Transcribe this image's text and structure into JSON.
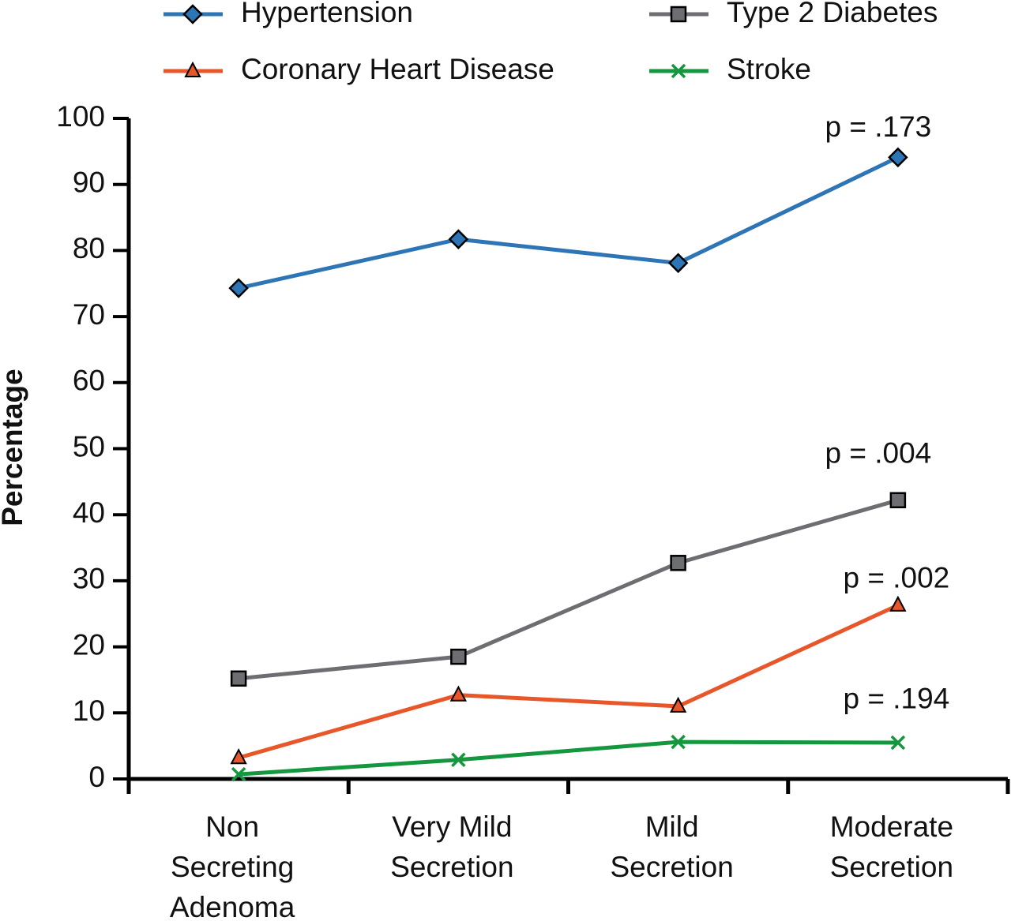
{
  "chart_data": {
    "type": "line",
    "y_label": "Percentage",
    "categories": [
      [
        "Non",
        "Secreting",
        "Adenoma"
      ],
      [
        "Very Mild",
        "Secretion"
      ],
      [
        "Mild",
        "Secretion"
      ],
      [
        "Moderate",
        "Secretion"
      ]
    ],
    "series": [
      {
        "name": "Hypertension",
        "color": "#2e75b6",
        "marker": "diamond",
        "values": [
          74.3,
          81.7,
          78.1,
          94.1
        ],
        "annotation": "p = .173"
      },
      {
        "name": "Type 2 Diabetes",
        "color": "#6d6e71",
        "marker": "square",
        "values": [
          15.2,
          18.5,
          32.7,
          42.2
        ],
        "annotation": "p = .004"
      },
      {
        "name": "Coronary Heart  Disease",
        "color": "#e8572a",
        "marker": "triangle",
        "values": [
          3.2,
          12.7,
          11.0,
          26.3
        ],
        "annotation": "p = .002"
      },
      {
        "name": "Stroke",
        "color": "#14973e",
        "marker": "x",
        "values": [
          0.7,
          2.9,
          5.6,
          5.5
        ],
        "annotation": "p = .194"
      }
    ],
    "ylim": [
      0,
      100
    ],
    "yticks": [
      0,
      10,
      20,
      30,
      40,
      50,
      60,
      70,
      80,
      90,
      100
    ],
    "grid": false
  }
}
